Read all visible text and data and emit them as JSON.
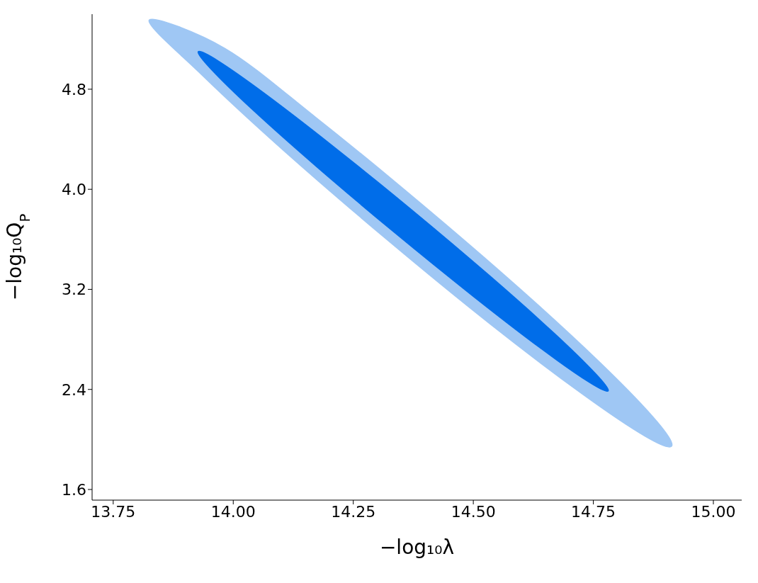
{
  "chart_data": {
    "type": "area",
    "xlabel": "−log₁₀λ",
    "ylabel": "−log₁₀Q$_{P}$",
    "xlim": [
      13.706,
      15.059
    ],
    "ylim": [
      1.515,
      5.4
    ],
    "xticks": [
      13.75,
      {
        "value": 14,
        "label": "14.00"
      },
      14.25,
      {
        "value": 14.5,
        "label": "14.50"
      },
      14.75,
      {
        "value": 15,
        "label": "15.00"
      }
    ],
    "yticks": [
      1.6,
      2.4,
      3.2,
      {
        "value": 4,
        "label": "4.0"
      },
      4.8
    ],
    "grid": false,
    "legend": false,
    "series": [
      {
        "color": "#9fc7f4",
        "x": [
          14.913,
          14.883,
          14.773,
          14.599,
          14.387,
          14.171,
          13.982,
          13.825,
          13.935,
          14.109,
          14.321,
          14.537,
          14.726,
          14.858
        ],
        "values": [
          1.946,
          2.141,
          2.581,
          3.198,
          3.899,
          4.577,
          5.128,
          5.353,
          4.913,
          4.296,
          3.595,
          2.917,
          2.366,
          2.025
        ]
      },
      {
        "color": "#006de9",
        "x": [
          14.781,
          14.755,
          14.669,
          14.535,
          14.373,
          14.208,
          14.066,
          13.967,
          13.927,
          13.953,
          14.039,
          14.173,
          14.335,
          14.5,
          14.642,
          14.741
        ],
        "values": [
          2.388,
          2.524,
          2.847,
          3.305,
          3.831,
          4.344,
          4.764,
          5.03,
          5.1,
          4.964,
          4.641,
          4.183,
          3.657,
          3.144,
          2.724,
          2.458
        ]
      }
    ]
  }
}
